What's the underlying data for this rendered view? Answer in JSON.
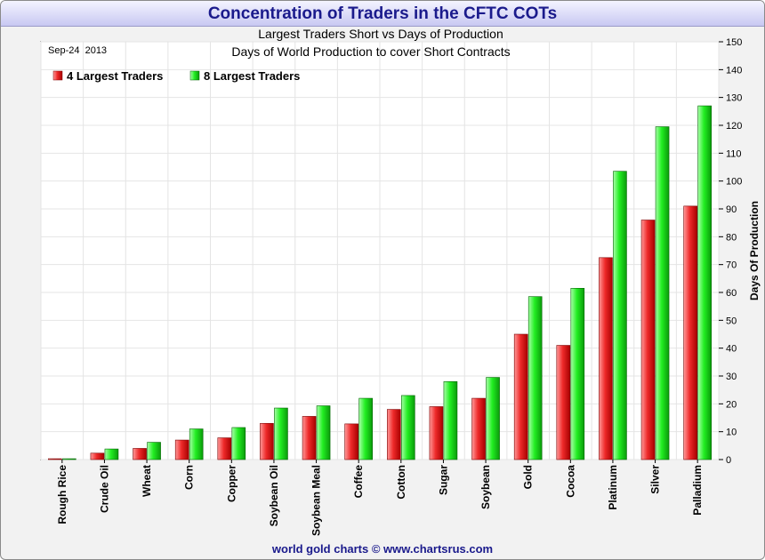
{
  "header": {
    "title": "Concentration of Traders in the CFTC COTs"
  },
  "footer": {
    "credit": "world gold charts © www.chartsrus.com"
  },
  "colors": {
    "series_4": "#e62020",
    "series_8": "#22dd22",
    "title": "#1a1a8c"
  },
  "chart_data": {
    "type": "bar",
    "title": "Largest Traders Short vs Days of Production",
    "subtitle": "Days of World Production to cover Short Contracts",
    "date_label": "Sep-24  2013",
    "ylabel": "Days Of Production",
    "xlabel": "",
    "ylim": [
      0,
      150
    ],
    "yticks": [
      0,
      10,
      20,
      30,
      40,
      50,
      60,
      70,
      80,
      90,
      100,
      110,
      120,
      130,
      140,
      150
    ],
    "y_axis_side": "right",
    "grid": true,
    "legend_position": "top-left",
    "categories": [
      "Rough Rice",
      "Crude Oil",
      "Wheat",
      "Corn",
      "Copper",
      "Soybean Oil",
      "Soybean Meal",
      "Coffee",
      "Cotton",
      "Sugar",
      "Soybean",
      "Gold",
      "Cocoa",
      "Platinum",
      "Silver",
      "Palladium"
    ],
    "series": [
      {
        "name": "4 Largest Traders",
        "color": "#e62020",
        "values": [
          0.3,
          2.3,
          4.0,
          7.0,
          7.8,
          13.0,
          15.5,
          12.8,
          18.0,
          19.0,
          22.0,
          45.0,
          41.0,
          72.5,
          86.0,
          91.0
        ]
      },
      {
        "name": "8 Largest Traders",
        "color": "#22dd22",
        "values": [
          0.3,
          3.8,
          6.2,
          11.0,
          11.5,
          18.5,
          19.3,
          22.0,
          23.0,
          28.0,
          29.5,
          58.5,
          61.5,
          103.5,
          119.5,
          127.0
        ]
      }
    ]
  }
}
